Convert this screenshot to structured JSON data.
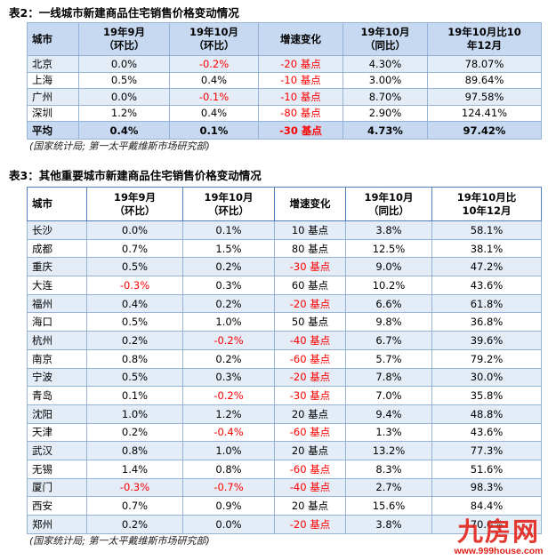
{
  "colors": {
    "header_bg": "#C6D9F1",
    "band_bg": "#E4ECF7",
    "border": "#4F81BD",
    "grid": "#95B3D7",
    "negative_text": "#FF0000",
    "watermark": "#E2231A"
  },
  "table2": {
    "title": "表2：一线城市新建商品住宅销售价格变动情况",
    "header": {
      "city": "城市",
      "sep_mom": [
        "19年9月",
        "（环比）"
      ],
      "oct_mom": [
        "19年10月",
        "（环比）"
      ],
      "change": "增速变化",
      "oct_yoy": [
        "19年10月",
        "（同比）"
      ],
      "vs_dec10": [
        "19年10月比10",
        "年12月"
      ]
    },
    "rows": [
      {
        "city": "北京",
        "sep_mom": "0.0%",
        "oct_mom": "-0.2%",
        "change": "-20 基点",
        "oct_yoy": "4.30%",
        "vs_dec10": "78.07%"
      },
      {
        "city": "上海",
        "sep_mom": "0.5%",
        "oct_mom": "0.4%",
        "change": "-10 基点",
        "oct_yoy": "3.00%",
        "vs_dec10": "89.64%"
      },
      {
        "city": "广州",
        "sep_mom": "0.0%",
        "oct_mom": "-0.1%",
        "change": "-10 基点",
        "oct_yoy": "8.70%",
        "vs_dec10": "97.58%"
      },
      {
        "city": "深圳",
        "sep_mom": "1.2%",
        "oct_mom": "0.4%",
        "change": "-80 基点",
        "oct_yoy": "2.90%",
        "vs_dec10": "124.41%"
      }
    ],
    "average": {
      "city": "平均",
      "sep_mom": "0.4%",
      "oct_mom": "0.1%",
      "change": "-30 基点",
      "oct_yoy": "4.73%",
      "vs_dec10": "97.42%"
    },
    "source": "(国家统计局; 第一太平戴维斯市场研究部)"
  },
  "table3": {
    "title": "表3：其他重要城市新建商品住宅销售价格变动情况",
    "header": {
      "city": "城市",
      "sep_mom": [
        "19年9月",
        "（环比）"
      ],
      "oct_mom": [
        "19年10月",
        "（环比）"
      ],
      "change": "增速变化",
      "oct_yoy": [
        "19年10月",
        "（同比）"
      ],
      "vs_dec10": [
        "19年10月比",
        "10年12月"
      ]
    },
    "rows": [
      {
        "city": "长沙",
        "sep_mom": "0.0%",
        "oct_mom": "0.1%",
        "change": "10 基点",
        "oct_yoy": "3.8%",
        "vs_dec10": "58.1%"
      },
      {
        "city": "成都",
        "sep_mom": "0.7%",
        "oct_mom": "1.5%",
        "change": "80 基点",
        "oct_yoy": "12.5%",
        "vs_dec10": "38.1%"
      },
      {
        "city": "重庆",
        "sep_mom": "0.5%",
        "oct_mom": "0.2%",
        "change": "-30 基点",
        "oct_yoy": "9.0%",
        "vs_dec10": "47.2%"
      },
      {
        "city": "大连",
        "sep_mom": "-0.3%",
        "oct_mom": "0.3%",
        "change": "60 基点",
        "oct_yoy": "10.2%",
        "vs_dec10": "43.6%"
      },
      {
        "city": "福州",
        "sep_mom": "0.4%",
        "oct_mom": "0.2%",
        "change": "-20 基点",
        "oct_yoy": "6.6%",
        "vs_dec10": "61.8%"
      },
      {
        "city": "海口",
        "sep_mom": "0.5%",
        "oct_mom": "1.0%",
        "change": "50 基点",
        "oct_yoy": "9.8%",
        "vs_dec10": "36.8%"
      },
      {
        "city": "杭州",
        "sep_mom": "0.2%",
        "oct_mom": "-0.2%",
        "change": "-40 基点",
        "oct_yoy": "6.7%",
        "vs_dec10": "39.6%"
      },
      {
        "city": "南京",
        "sep_mom": "0.8%",
        "oct_mom": "0.2%",
        "change": "-60 基点",
        "oct_yoy": "5.7%",
        "vs_dec10": "79.2%"
      },
      {
        "city": "宁波",
        "sep_mom": "0.5%",
        "oct_mom": "0.3%",
        "change": "-20 基点",
        "oct_yoy": "7.8%",
        "vs_dec10": "30.0%"
      },
      {
        "city": "青岛",
        "sep_mom": "0.1%",
        "oct_mom": "-0.2%",
        "change": "-30 基点",
        "oct_yoy": "7.0%",
        "vs_dec10": "35.8%"
      },
      {
        "city": "沈阳",
        "sep_mom": "1.0%",
        "oct_mom": "1.2%",
        "change": "20 基点",
        "oct_yoy": "9.4%",
        "vs_dec10": "48.8%"
      },
      {
        "city": "天津",
        "sep_mom": "0.2%",
        "oct_mom": "-0.4%",
        "change": "-60 基点",
        "oct_yoy": "1.3%",
        "vs_dec10": "43.6%"
      },
      {
        "city": "武汉",
        "sep_mom": "0.8%",
        "oct_mom": "1.0%",
        "change": "20 基点",
        "oct_yoy": "13.2%",
        "vs_dec10": "77.3%"
      },
      {
        "city": "无锡",
        "sep_mom": "1.4%",
        "oct_mom": "0.8%",
        "change": "-60 基点",
        "oct_yoy": "8.3%",
        "vs_dec10": "51.6%"
      },
      {
        "city": "厦门",
        "sep_mom": "-0.3%",
        "oct_mom": "-0.7%",
        "change": "-40 基点",
        "oct_yoy": "2.7%",
        "vs_dec10": "98.3%"
      },
      {
        "city": "西安",
        "sep_mom": "0.7%",
        "oct_mom": "0.9%",
        "change": "20 基点",
        "oct_yoy": "15.6%",
        "vs_dec10": "84.4%"
      },
      {
        "city": "郑州",
        "sep_mom": "0.2%",
        "oct_mom": "0.0%",
        "change": "-20 基点",
        "oct_yoy": "3.8%",
        "vs_dec10": "70.0%"
      }
    ],
    "source": "(国家统计局; 第一太平戴维斯市场研究部)"
  },
  "watermark": {
    "brand": "九房网",
    "url": "www.999house.com"
  }
}
